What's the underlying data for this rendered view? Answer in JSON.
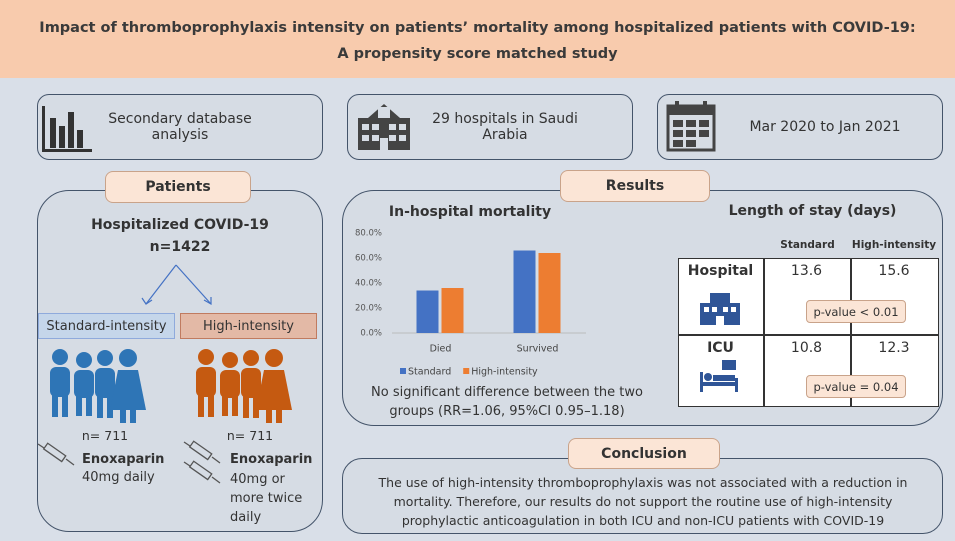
{
  "header": {
    "title": [
      "Impact of thromboprophylaxis intensity on patients’ mortality among hospitalized patients with COVID-19:",
      "A propensity score matched study"
    ]
  },
  "facts": [
    "Secondary database analysis",
    "29 hospitals in Saudi Arabia",
    "Mar 2020 to Jan 2021"
  ],
  "patients": {
    "heading": "Patients",
    "population": "Hospitalized COVID-19",
    "n": "n=1422",
    "groups": [
      {
        "name": "Standard-intensity",
        "n": "n= 711",
        "drug": "Enoxaparin",
        "dose": "40mg daily"
      },
      {
        "name": "High-intensity",
        "n": "n= 711",
        "drug": "Enoxaparin",
        "dose": "40mg or more twice daily"
      }
    ]
  },
  "results": {
    "heading": "Results",
    "note": "No significant difference between the two groups (RR=1.06, 95%CI 0.95–1.18)",
    "length_of_stay": {
      "title": "Length of stay (days)",
      "columns": [
        "Standard",
        "High-intensity"
      ],
      "rows": [
        {
          "label": "Hospital",
          "values": [
            13.6,
            15.6
          ],
          "p": "p-value < 0.01"
        },
        {
          "label": "ICU",
          "values": [
            10.8,
            12.3
          ],
          "p": "p-value = 0.04"
        }
      ]
    }
  },
  "chart_data": {
    "type": "bar",
    "title": "In-hospital mortality",
    "categories": [
      "Died",
      "Survived"
    ],
    "series": [
      {
        "name": "Standard",
        "color": "#4472c4",
        "values": [
          34,
          66
        ]
      },
      {
        "name": "High-intensity",
        "color": "#ed7d31",
        "values": [
          36,
          64
        ]
      }
    ],
    "ylim": [
      0,
      80
    ],
    "yticks": [
      {
        "value": 0,
        "label": "0.0%"
      },
      {
        "value": 20,
        "label": "20.0%"
      },
      {
        "value": 40,
        "label": "40.0%"
      },
      {
        "value": 60,
        "label": "60.0%"
      },
      {
        "value": 80,
        "label": "80.0%"
      }
    ],
    "grid": false,
    "legend": "bottom"
  },
  "conclusion": {
    "heading": "Conclusion",
    "text": "The use of high-intensity thromboprophylaxis was not associated with a reduction in mortality. Therefore, our results do not support the routine use of high-intensity prophylactic anticoagulation in both ICU and non-ICU patients with COVID-19"
  }
}
